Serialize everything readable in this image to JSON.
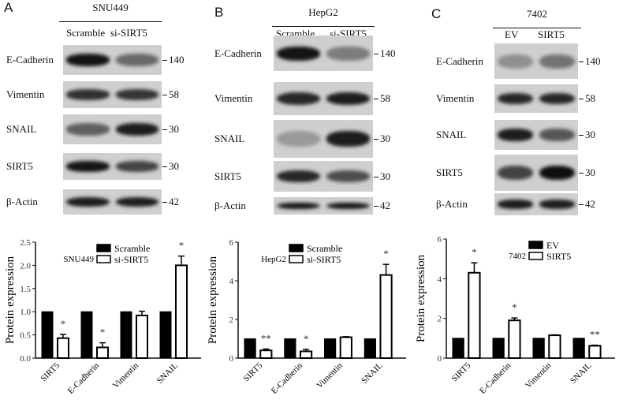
{
  "panels": [
    {
      "letter": "A",
      "cell_line": "SNU449",
      "lanes": [
        "Scramble",
        "si-SIRT5"
      ],
      "blots": [
        {
          "protein": "E-Cadherin",
          "mw": "140",
          "band_intensity": [
            0.95,
            0.5
          ]
        },
        {
          "protein": "Vimentin",
          "mw": "58",
          "band_intensity": [
            0.8,
            0.78
          ]
        },
        {
          "protein": "SNAIL",
          "mw": "30",
          "band_intensity": [
            0.55,
            0.9
          ]
        },
        {
          "protein": "SIRT5",
          "mw": "30",
          "band_intensity": [
            0.95,
            0.7
          ]
        },
        {
          "protein": "β-Actin",
          "mw": "42",
          "band_intensity": [
            0.9,
            0.9
          ]
        }
      ]
    },
    {
      "letter": "B",
      "cell_line": "HepG2",
      "lanes": [
        "Scramble",
        "si-SIRT5"
      ],
      "blots": [
        {
          "protein": "E-Cadherin",
          "mw": "140",
          "band_intensity": [
            0.95,
            0.4
          ]
        },
        {
          "protein": "Vimentin",
          "mw": "58",
          "band_intensity": [
            0.85,
            0.9
          ]
        },
        {
          "protein": "SNAIL",
          "mw": "30",
          "band_intensity": [
            0.25,
            0.9
          ]
        },
        {
          "protein": "SIRT5",
          "mw": "30",
          "band_intensity": [
            0.85,
            0.65
          ]
        },
        {
          "protein": "β-Actin",
          "mw": "42",
          "band_intensity": [
            0.95,
            0.95
          ]
        }
      ]
    },
    {
      "letter": "C",
      "cell_line": "7402",
      "lanes": [
        "EV",
        "SIRT5"
      ],
      "blots": [
        {
          "protein": "E-Cadherin",
          "mw": "140",
          "band_intensity": [
            0.3,
            0.45
          ]
        },
        {
          "protein": "Vimentin",
          "mw": "58",
          "band_intensity": [
            0.85,
            0.85
          ]
        },
        {
          "protein": "SNAIL",
          "mw": "30",
          "band_intensity": [
            0.9,
            0.6
          ]
        },
        {
          "protein": "SIRT5",
          "mw": "30",
          "band_intensity": [
            0.7,
            0.98
          ]
        },
        {
          "protein": "β-Actin",
          "mw": "42",
          "band_intensity": [
            0.9,
            0.9
          ]
        }
      ]
    }
  ],
  "chart_data": [
    {
      "type": "bar",
      "annotation": "SNU449",
      "ylabel": "Protein expression",
      "categories": [
        "SIRT5",
        "E-Cadherin",
        "Vimentin",
        "SNAIL"
      ],
      "ylim": [
        0,
        2.5
      ],
      "yticks": [
        "0.0",
        "0.5",
        "1.0",
        "1.5",
        "2.0",
        "2.5"
      ],
      "legend_position": "top",
      "series": [
        {
          "name": "Scramble",
          "color": "#000000",
          "values": [
            1,
            1,
            1,
            1
          ],
          "errors": [
            0,
            0,
            0,
            0
          ]
        },
        {
          "name": "si-SIRT5",
          "color": "#ffffff",
          "values": [
            0.43,
            0.23,
            0.92,
            2.0
          ],
          "errors": [
            0.08,
            0.1,
            0.09,
            0.2
          ]
        }
      ],
      "significance": [
        "*",
        "*",
        "",
        "*"
      ]
    },
    {
      "type": "bar",
      "annotation": "HepG2",
      "ylabel": "Protein expression",
      "categories": [
        "SIRT5",
        "E-Cadherin",
        "Vimentin",
        "SNAIL"
      ],
      "ylim": [
        0,
        6
      ],
      "yticks": [
        "0",
        "2",
        "4",
        "6"
      ],
      "legend_position": "top",
      "series": [
        {
          "name": "Scramble",
          "color": "#000000",
          "values": [
            1,
            1,
            1,
            1
          ],
          "errors": [
            0,
            0,
            0,
            0
          ]
        },
        {
          "name": "si-SIRT5",
          "color": "#ffffff",
          "values": [
            0.4,
            0.35,
            1.08,
            4.3
          ],
          "errors": [
            0.07,
            0.1,
            0.03,
            0.55
          ]
        }
      ],
      "significance": [
        "**",
        "*",
        "",
        "*"
      ]
    },
    {
      "type": "bar",
      "annotation": "7402",
      "ylabel": "Protein expression",
      "categories": [
        "SIRT5",
        "E-Cadherin",
        "Vimentin",
        "SNAIL"
      ],
      "ylim": [
        0,
        6
      ],
      "yticks": [
        "0",
        "2",
        "4",
        "6"
      ],
      "legend_position": "top",
      "series": [
        {
          "name": "EV",
          "color": "#000000",
          "values": [
            1,
            1,
            1,
            1
          ],
          "errors": [
            0,
            0,
            0,
            0
          ]
        },
        {
          "name": "SIRT5",
          "color": "#ffffff",
          "values": [
            4.3,
            1.9,
            1.15,
            0.62
          ],
          "errors": [
            0.5,
            0.12,
            0.02,
            0.03
          ]
        }
      ],
      "significance": [
        "*",
        "*",
        "",
        "**"
      ]
    }
  ]
}
